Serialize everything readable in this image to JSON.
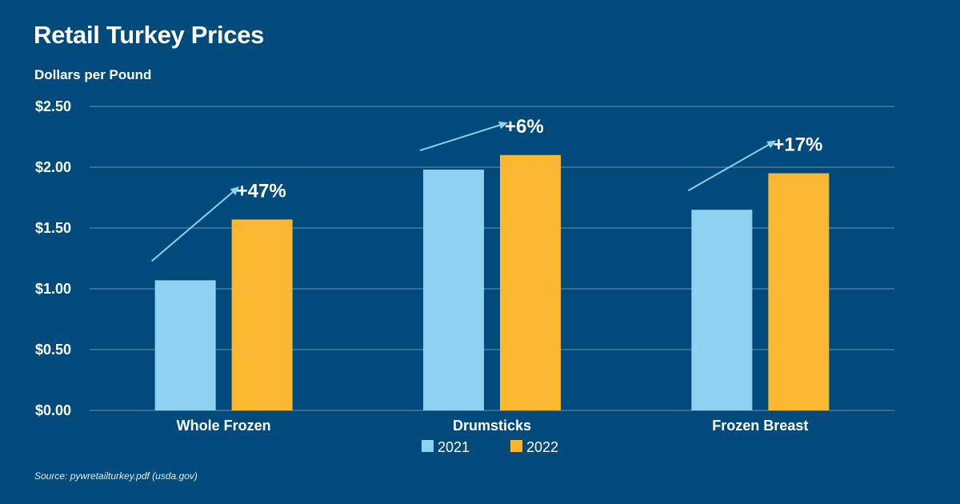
{
  "header": {
    "title": "Retail Turkey Prices",
    "ylabel": "Dollars per Pound"
  },
  "footer": {
    "source": "Source: pywretailturkey.pdf (usda.gov)"
  },
  "colors": {
    "background": "#004a7c",
    "series_2021": "#8ed1f1",
    "series_2022": "#fbb731",
    "gridline": "#6d93b5",
    "arrow": "#8ed1f1"
  },
  "chart_data": {
    "type": "bar",
    "title": "Retail Turkey Prices",
    "ylabel": "Dollars per Pound",
    "xlabel": "",
    "categories": [
      "Whole Frozen",
      "Drumsticks",
      "Frozen Breast"
    ],
    "series": [
      {
        "name": "2021",
        "values": [
          1.07,
          1.98,
          1.65
        ]
      },
      {
        "name": "2022",
        "values": [
          1.57,
          2.1,
          1.95
        ]
      }
    ],
    "annotations": [
      "+47%",
      "+6%",
      "+17%"
    ],
    "ylim": [
      0,
      2.5
    ],
    "yticks": [
      0,
      0.5,
      1.0,
      1.5,
      2.0,
      2.5
    ],
    "ytick_labels": [
      "$0.00",
      "$0.50",
      "$1.00",
      "$1.50",
      "$2.00",
      "$2.50"
    ],
    "grid": true,
    "legend": "bottom-center"
  }
}
